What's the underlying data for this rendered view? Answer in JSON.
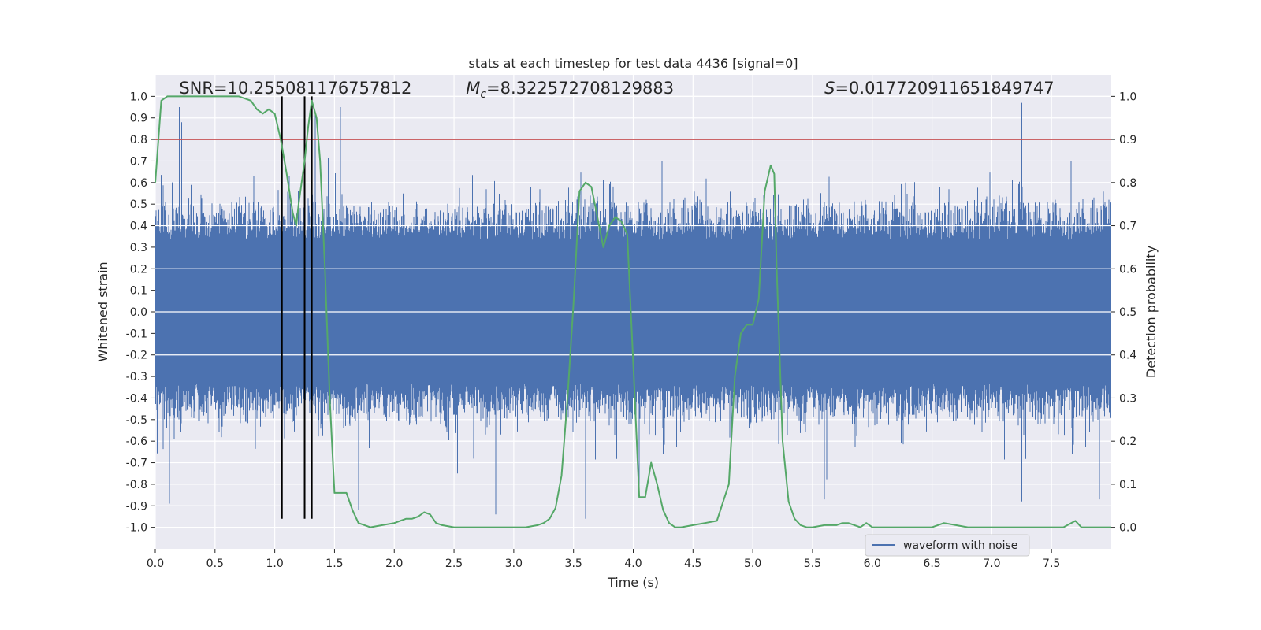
{
  "chart_data": {
    "type": "line",
    "title": "stats at each timestep for test data 4436 [signal=0]",
    "xlabel": "Time (s)",
    "ylabel": "Whitened strain",
    "y2label": "Detection probability",
    "xlim": [
      0.0,
      8.0
    ],
    "ylim": [
      -1.1,
      1.1
    ],
    "y2lim": [
      -0.05,
      1.05
    ],
    "xticks": [
      0.0,
      0.5,
      1.0,
      1.5,
      2.0,
      2.5,
      3.0,
      3.5,
      4.0,
      4.5,
      5.0,
      5.5,
      6.0,
      6.5,
      7.0,
      7.5
    ],
    "yticks": [
      -1.0,
      -0.9,
      -0.8,
      -0.7,
      -0.6,
      -0.5,
      -0.4,
      -0.3,
      -0.2,
      -0.1,
      0.0,
      0.1,
      0.2,
      0.3,
      0.4,
      0.5,
      0.6,
      0.7,
      0.8,
      0.9,
      1.0
    ],
    "y2ticks": [
      0.0,
      0.1,
      0.2,
      0.3,
      0.4,
      0.5,
      0.6,
      0.7,
      0.8,
      0.9,
      1.0
    ],
    "threshold": {
      "axis": "y2",
      "value": 0.9,
      "color": "#c44e52"
    },
    "vlines": {
      "x": [
        1.06,
        1.25,
        1.31
      ],
      "ymin": -0.96,
      "ymax": 1.0,
      "color": "#000000"
    },
    "annotations": [
      {
        "id": "snr",
        "text": "SNR=10.255081176757812",
        "x": 0.2,
        "y": 1.02
      },
      {
        "id": "mc",
        "text": "M_c=8.322572708129883",
        "x": 2.6,
        "y": 1.02
      },
      {
        "id": "s",
        "text": "S=0.017720911651849747",
        "x": 5.6,
        "y": 1.02
      }
    ],
    "series": [
      {
        "name": "waveform with noise",
        "axis": "y1",
        "color": "#4c72b0",
        "kind": "dense-noise",
        "sample_rate": 2048,
        "typical_envelope": [
          -0.5,
          0.5
        ],
        "peaks_high": [
          [
            0.15,
            0.9
          ],
          [
            0.2,
            0.95
          ],
          [
            0.22,
            0.88
          ],
          [
            1.34,
            0.93
          ],
          [
            1.55,
            0.95
          ],
          [
            5.53,
            1.0
          ],
          [
            7.25,
            0.97
          ],
          [
            7.43,
            0.93
          ]
        ],
        "peaks_low": [
          [
            0.12,
            -0.89
          ],
          [
            1.7,
            -0.92
          ],
          [
            2.85,
            -0.94
          ],
          [
            3.6,
            -0.96
          ],
          [
            4.05,
            -0.82
          ],
          [
            5.6,
            -0.87
          ],
          [
            7.25,
            -0.88
          ],
          [
            7.9,
            -0.87
          ]
        ],
        "legend": "waveform with noise"
      },
      {
        "name": "detection probability",
        "axis": "y2",
        "color": "#55a868",
        "x": [
          0.0,
          0.05,
          0.1,
          0.2,
          0.3,
          0.4,
          0.5,
          0.6,
          0.7,
          0.8,
          0.85,
          0.9,
          0.95,
          1.0,
          1.05,
          1.1,
          1.15,
          1.18,
          1.2,
          1.25,
          1.28,
          1.31,
          1.35,
          1.38,
          1.42,
          1.46,
          1.5,
          1.55,
          1.6,
          1.65,
          1.7,
          1.8,
          1.9,
          2.0,
          2.05,
          2.1,
          2.15,
          2.2,
          2.25,
          2.3,
          2.35,
          2.4,
          2.5,
          2.6,
          2.7,
          2.8,
          2.9,
          3.0,
          3.1,
          3.2,
          3.25,
          3.3,
          3.35,
          3.4,
          3.45,
          3.5,
          3.55,
          3.6,
          3.65,
          3.7,
          3.75,
          3.8,
          3.85,
          3.9,
          3.95,
          4.0,
          4.05,
          4.1,
          4.15,
          4.2,
          4.25,
          4.3,
          4.35,
          4.4,
          4.5,
          4.6,
          4.7,
          4.8,
          4.85,
          4.9,
          4.95,
          5.0,
          5.05,
          5.1,
          5.15,
          5.18,
          5.2,
          5.25,
          5.3,
          5.35,
          5.4,
          5.45,
          5.5,
          5.6,
          5.7,
          5.75,
          5.8,
          5.9,
          5.95,
          6.0,
          6.05,
          6.1,
          6.2,
          6.3,
          6.4,
          6.5,
          6.6,
          6.7,
          6.8,
          6.85,
          6.9,
          7.0,
          7.1,
          7.2,
          7.3,
          7.4,
          7.5,
          7.6,
          7.7,
          7.75,
          7.8,
          7.85,
          7.9,
          7.95,
          8.0
        ],
        "y": [
          0.8,
          0.99,
          1.0,
          1.0,
          1.0,
          1.0,
          1.0,
          1.0,
          1.0,
          0.99,
          0.97,
          0.96,
          0.97,
          0.96,
          0.9,
          0.82,
          0.73,
          0.7,
          0.75,
          0.85,
          0.93,
          0.99,
          0.95,
          0.85,
          0.6,
          0.3,
          0.08,
          0.08,
          0.08,
          0.04,
          0.01,
          0.0,
          0.005,
          0.01,
          0.015,
          0.02,
          0.02,
          0.025,
          0.035,
          0.03,
          0.01,
          0.005,
          0.0,
          0.0,
          0.0,
          0.0,
          0.0,
          0.0,
          0.0,
          0.005,
          0.01,
          0.02,
          0.045,
          0.12,
          0.3,
          0.52,
          0.78,
          0.8,
          0.79,
          0.72,
          0.65,
          0.7,
          0.72,
          0.71,
          0.68,
          0.38,
          0.07,
          0.07,
          0.15,
          0.1,
          0.04,
          0.01,
          0.0,
          0.0,
          0.005,
          0.01,
          0.015,
          0.1,
          0.35,
          0.45,
          0.47,
          0.47,
          0.53,
          0.78,
          0.84,
          0.82,
          0.6,
          0.2,
          0.06,
          0.02,
          0.005,
          0.0,
          0.0,
          0.005,
          0.005,
          0.01,
          0.01,
          0.0,
          0.01,
          0.0,
          0.0,
          0.0,
          0.0,
          0.0,
          0.0,
          0.0,
          0.01,
          0.005,
          0.0,
          0.0,
          0.0,
          0.0,
          0.0,
          0.0,
          0.0,
          0.0,
          0.0,
          0.0,
          0.015,
          0.0,
          0.0,
          0.0,
          0.0,
          0.0,
          0.0
        ]
      }
    ],
    "legend_position": "lower-right",
    "grid": true
  }
}
